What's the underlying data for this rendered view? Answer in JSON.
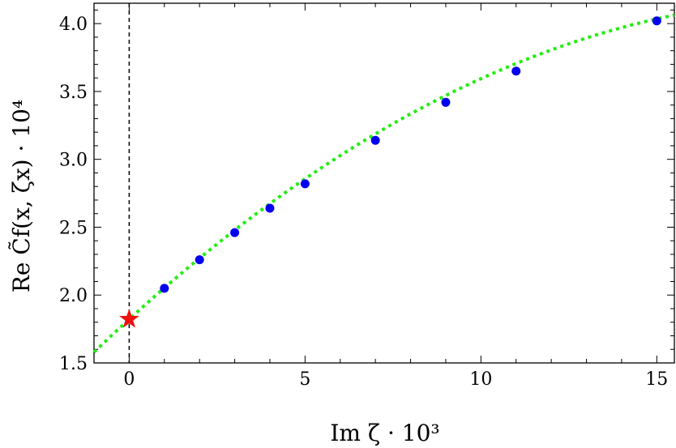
{
  "chart_data": {
    "type": "scatter",
    "xlabel": "Im ζ · 10³",
    "ylabel": "Re C̃f(x, ζx) · 10⁴",
    "xlim": [
      -1.0,
      15.5
    ],
    "ylim": [
      1.5,
      4.15
    ],
    "x_ticks": [
      {
        "value": 0,
        "label": "0"
      },
      {
        "value": 5,
        "label": "5"
      },
      {
        "value": 10,
        "label": "10"
      },
      {
        "value": 15,
        "label": "15"
      }
    ],
    "y_ticks": [
      {
        "value": 1.5,
        "label": "1.5"
      },
      {
        "value": 2.0,
        "label": "2.0"
      },
      {
        "value": 2.5,
        "label": "2.5"
      },
      {
        "value": 3.0,
        "label": "3.0"
      },
      {
        "value": 3.5,
        "label": "3.5"
      },
      {
        "value": 4.0,
        "label": "4.0"
      }
    ],
    "series": [
      {
        "kind": "points",
        "color": "#0000ee",
        "x": [
          1,
          2,
          3,
          4,
          5,
          7,
          9,
          11,
          15
        ],
        "y": [
          2.05,
          2.26,
          2.46,
          2.64,
          2.82,
          3.14,
          3.42,
          3.65,
          4.02
        ]
      },
      {
        "kind": "fit-curve",
        "color": "#22ee11",
        "style": "dotted",
        "coeffs": [
          1.822,
          0.2366,
          -0.00594
        ]
      },
      {
        "kind": "extrapolated-point",
        "marker": "star",
        "color": "#ee1111",
        "x": [
          0
        ],
        "y": [
          1.822
        ]
      }
    ],
    "reference_line": {
      "x": 0,
      "style": "dashed",
      "color": "#000000"
    },
    "frame": true,
    "grid": false
  }
}
